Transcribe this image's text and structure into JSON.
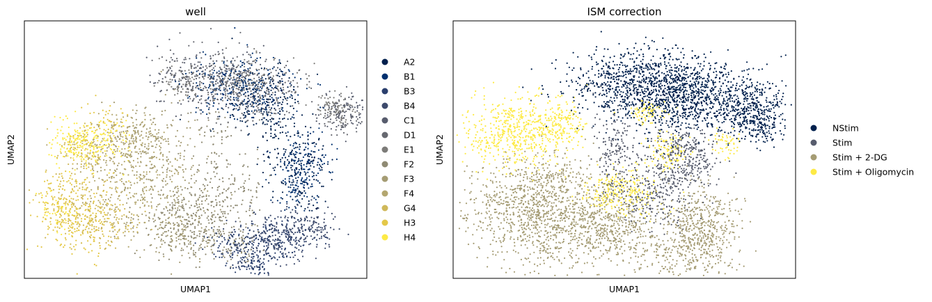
{
  "chart_data": [
    {
      "type": "scatter",
      "title": "well",
      "xlabel": "UMAP1",
      "ylabel": "UMAP2",
      "grid": false,
      "ticks": false,
      "legend_position": "right",
      "series": [
        {
          "name": "A2",
          "color": "#00204d"
        },
        {
          "name": "B1",
          "color": "#00306f"
        },
        {
          "name": "B3",
          "color": "#2a3f6d"
        },
        {
          "name": "B4",
          "color": "#3d4a6c"
        },
        {
          "name": "C1",
          "color": "#575c6d"
        },
        {
          "name": "D1",
          "color": "#666870"
        },
        {
          "name": "E1",
          "color": "#7c7b78"
        },
        {
          "name": "F2",
          "color": "#8f8a73"
        },
        {
          "name": "F3",
          "color": "#a59c74"
        },
        {
          "name": "F4",
          "color": "#b3a66f"
        },
        {
          "name": "G4",
          "color": "#cfb85a"
        },
        {
          "name": "H3",
          "color": "#e4c848"
        },
        {
          "name": "H4",
          "color": "#fdea45"
        }
      ]
    },
    {
      "type": "scatter",
      "title": "ISM correction",
      "xlabel": "UMAP1",
      "ylabel": "UMAP2",
      "grid": false,
      "ticks": false,
      "legend_position": "right",
      "series": [
        {
          "name": "NStim",
          "color": "#00204d"
        },
        {
          "name": "Stim",
          "color": "#575c6d"
        },
        {
          "name": "Stim + 2-DG",
          "color": "#a59c74"
        },
        {
          "name": "Stim + Oligomycin",
          "color": "#fdea45"
        }
      ]
    }
  ]
}
